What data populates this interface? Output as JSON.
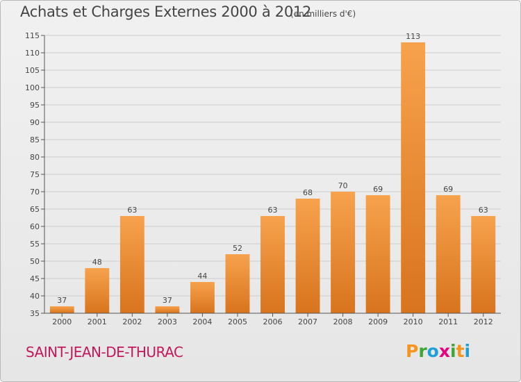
{
  "header": {
    "title": "Achats et Charges Externes 2000 à 2012",
    "unit": "(en milliers d'€)"
  },
  "footer": {
    "commune": "SAINT-JEAN-DE-THURAC",
    "logo_letters": [
      "P",
      "r",
      "o",
      "x",
      "i",
      "t",
      "i"
    ],
    "logo_colors": [
      "#f7941d",
      "#3fa535",
      "#1e9fd8",
      "#e5007e",
      "#3fa535",
      "#f7941d",
      "#1e9fd8"
    ]
  },
  "colors": {
    "bar_top": "#f7a24d",
    "bar_bottom": "#d8741d",
    "grid": "#cccccc",
    "text": "#444444"
  },
  "chart_data": {
    "type": "bar",
    "title": "Achats et Charges Externes 2000 à 2012",
    "categories": [
      "2000",
      "2001",
      "2002",
      "2003",
      "2004",
      "2005",
      "2006",
      "2007",
      "2008",
      "2009",
      "2010",
      "2011",
      "2012"
    ],
    "values": [
      37,
      48,
      63,
      37,
      44,
      52,
      63,
      68,
      70,
      69,
      113,
      69,
      63
    ],
    "ylim": [
      35,
      115
    ],
    "yticks": [
      35,
      40,
      45,
      50,
      55,
      60,
      65,
      70,
      75,
      80,
      85,
      90,
      95,
      100,
      105,
      110,
      115
    ],
    "grid": true,
    "data_labels": true
  }
}
